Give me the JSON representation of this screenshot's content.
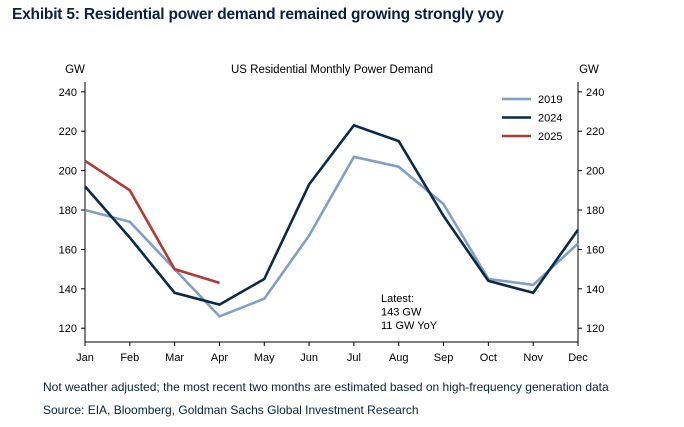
{
  "header": {
    "title": "Exhibit 5: Residential power demand remained growing strongly yoy"
  },
  "chart_data": {
    "type": "line",
    "title": "US Residential Monthly Power Demand",
    "ylabel_left": "GW",
    "ylabel_right": "GW",
    "categories": [
      "Jan",
      "Feb",
      "Mar",
      "Apr",
      "May",
      "Jun",
      "Jul",
      "Aug",
      "Sep",
      "Oct",
      "Nov",
      "Dec"
    ],
    "ylim": [
      113,
      245
    ],
    "yticks": [
      120,
      140,
      160,
      180,
      200,
      220,
      240
    ],
    "grid": false,
    "legend_position": "top-right",
    "series": [
      {
        "name": "2019",
        "color": "#7f9fc6",
        "values": [
          180,
          174,
          150,
          126,
          135,
          167,
          207,
          202,
          183,
          145,
          142,
          163
        ]
      },
      {
        "name": "2024",
        "color": "#0a2a4a",
        "values": [
          192,
          166,
          138,
          132,
          145,
          193,
          223,
          215,
          177,
          144,
          138,
          170
        ]
      },
      {
        "name": "2025",
        "color": "#b03a36",
        "values": [
          205,
          190,
          150,
          143,
          null,
          null,
          null,
          null,
          null,
          null,
          null,
          null
        ]
      }
    ],
    "annotation": {
      "lines": [
        "Latest:",
        "143 GW",
        "11 GW YoY"
      ]
    }
  },
  "footnote": "Not weather adjusted; the most recent two months are estimated based on high-frequency generation data",
  "source": "Source: EIA, Bloomberg, Goldman Sachs Global Investment Research"
}
